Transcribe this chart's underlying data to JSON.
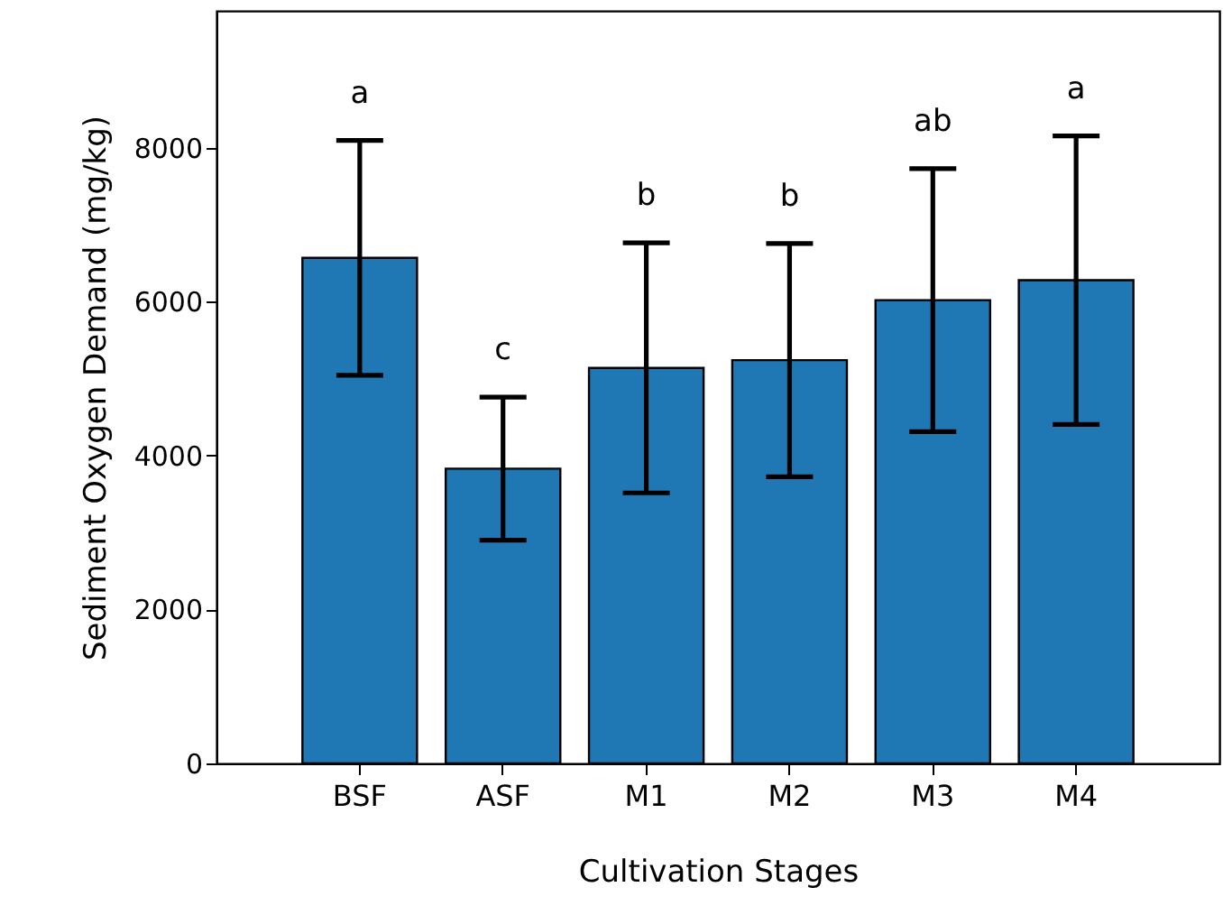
{
  "chart_data": {
    "type": "bar",
    "xlabel": "Cultivation Stages",
    "ylabel": "Sediment Oxygen Demand (mg/kg)",
    "categories": [
      "BSF",
      "ASF",
      "M1",
      "M2",
      "M3",
      "M4"
    ],
    "values": [
      6570,
      3830,
      5140,
      5240,
      6020,
      6280
    ],
    "errors": [
      1525,
      930,
      1625,
      1515,
      1710,
      1875
    ],
    "color": "#1f77b4",
    "ylim": [
      0,
      9780
    ],
    "yticks": [
      0,
      2000,
      4000,
      6000,
      8000
    ],
    "grid": false,
    "annotations": [
      "a",
      "c",
      "b",
      "b",
      "ab",
      "a"
    ]
  }
}
